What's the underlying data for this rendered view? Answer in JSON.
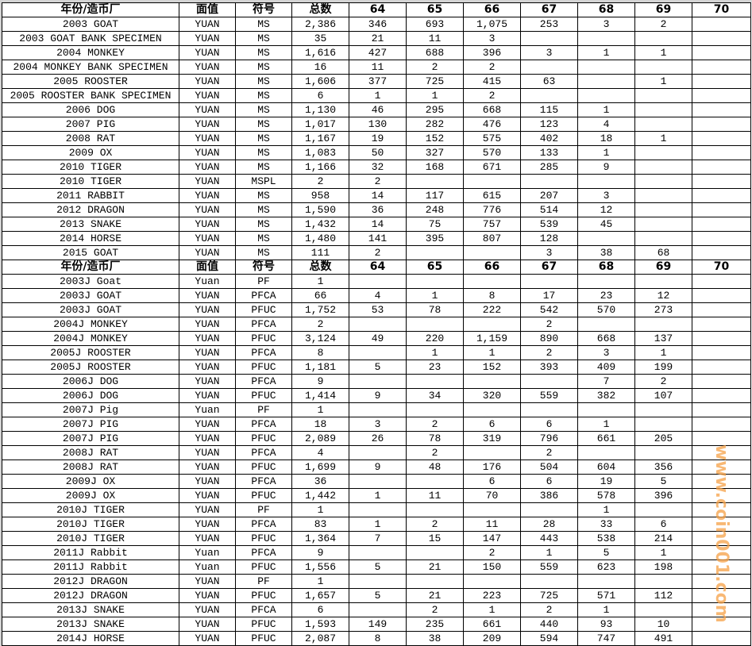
{
  "header": [
    "年份/造币厂",
    "面值",
    "符号",
    "总数",
    "64",
    "65",
    "66",
    "67",
    "68",
    "69",
    "70"
  ],
  "sections": [
    {
      "rows": [
        [
          "2003 GOAT",
          "YUAN",
          "MS",
          "2,386",
          "346",
          "693",
          "1,075",
          "253",
          "3",
          "2",
          ""
        ],
        [
          "2003 GOAT BANK SPECIMEN",
          "YUAN",
          "MS",
          "35",
          "21",
          "11",
          "3",
          "",
          "",
          "",
          ""
        ],
        [
          "2004 MONKEY",
          "YUAN",
          "MS",
          "1,616",
          "427",
          "688",
          "396",
          "3",
          "1",
          "1",
          ""
        ],
        [
          "2004 MONKEY BANK SPECIMEN",
          "YUAN",
          "MS",
          "16",
          "11",
          "2",
          "2",
          "",
          "",
          "",
          ""
        ],
        [
          "2005 ROOSTER",
          "YUAN",
          "MS",
          "1,606",
          "377",
          "725",
          "415",
          "63",
          "",
          "1",
          ""
        ],
        [
          "2005 ROOSTER BANK SPECIMEN",
          "YUAN",
          "MS",
          "6",
          "1",
          "1",
          "2",
          "",
          "",
          "",
          ""
        ],
        [
          "2006 DOG",
          "YUAN",
          "MS",
          "1,130",
          "46",
          "295",
          "668",
          "115",
          "1",
          "",
          ""
        ],
        [
          "2007 PIG",
          "YUAN",
          "MS",
          "1,017",
          "130",
          "282",
          "476",
          "123",
          "4",
          "",
          ""
        ],
        [
          "2008 RAT",
          "YUAN",
          "MS",
          "1,167",
          "19",
          "152",
          "575",
          "402",
          "18",
          "1",
          ""
        ],
        [
          "2009 OX",
          "YUAN",
          "MS",
          "1,083",
          "50",
          "327",
          "570",
          "133",
          "1",
          "",
          ""
        ],
        [
          "2010 TIGER",
          "YUAN",
          "MS",
          "1,166",
          "32",
          "168",
          "671",
          "285",
          "9",
          "",
          ""
        ],
        [
          "2010 TIGER",
          "YUAN",
          "MSPL",
          "2",
          "2",
          "",
          "",
          "",
          "",
          "",
          ""
        ],
        [
          "2011 RABBIT",
          "YUAN",
          "MS",
          "958",
          "14",
          "117",
          "615",
          "207",
          "3",
          "",
          ""
        ],
        [
          "2012 DRAGON",
          "YUAN",
          "MS",
          "1,590",
          "36",
          "248",
          "776",
          "514",
          "12",
          "",
          ""
        ],
        [
          "2013 SNAKE",
          "YUAN",
          "MS",
          "1,432",
          "14",
          "75",
          "757",
          "539",
          "45",
          "",
          ""
        ],
        [
          "2014 HORSE",
          "YUAN",
          "MS",
          "1,480",
          "141",
          "395",
          "807",
          "128",
          "",
          "",
          ""
        ],
        [
          "2015 GOAT",
          "YUAN",
          "MS",
          "111",
          "2",
          "",
          "",
          "3",
          "38",
          "68",
          ""
        ]
      ]
    },
    {
      "rows": [
        [
          "2003J Goat",
          "Yuan",
          "PF",
          "1",
          "",
          "",
          "",
          "",
          "",
          "",
          ""
        ],
        [
          "2003J GOAT",
          "YUAN",
          "PFCA",
          "66",
          "4",
          "1",
          "8",
          "17",
          "23",
          "12",
          ""
        ],
        [
          "2003J GOAT",
          "YUAN",
          "PFUC",
          "1,752",
          "53",
          "78",
          "222",
          "542",
          "570",
          "273",
          ""
        ],
        [
          "2004J MONKEY",
          "YUAN",
          "PFCA",
          "2",
          "",
          "",
          "",
          "2",
          "",
          "",
          ""
        ],
        [
          "2004J MONKEY",
          "YUAN",
          "PFUC",
          "3,124",
          "49",
          "220",
          "1,159",
          "890",
          "668",
          "137",
          ""
        ],
        [
          "2005J ROOSTER",
          "YUAN",
          "PFCA",
          "8",
          "",
          "1",
          "1",
          "2",
          "3",
          "1",
          ""
        ],
        [
          "2005J ROOSTER",
          "YUAN",
          "PFUC",
          "1,181",
          "5",
          "23",
          "152",
          "393",
          "409",
          "199",
          ""
        ],
        [
          "2006J DOG",
          "YUAN",
          "PFCA",
          "9",
          "",
          "",
          "",
          "",
          "7",
          "2",
          ""
        ],
        [
          "2006J DOG",
          "YUAN",
          "PFUC",
          "1,414",
          "9",
          "34",
          "320",
          "559",
          "382",
          "107",
          ""
        ],
        [
          "2007J Pig",
          "Yuan",
          "PF",
          "1",
          "",
          "",
          "",
          "",
          "",
          "",
          ""
        ],
        [
          "2007J PIG",
          "YUAN",
          "PFCA",
          "18",
          "3",
          "2",
          "6",
          "6",
          "1",
          "",
          ""
        ],
        [
          "2007J PIG",
          "YUAN",
          "PFUC",
          "2,089",
          "26",
          "78",
          "319",
          "796",
          "661",
          "205",
          ""
        ],
        [
          "2008J RAT",
          "YUAN",
          "PFCA",
          "4",
          "",
          "2",
          "",
          "2",
          "",
          "",
          ""
        ],
        [
          "2008J RAT",
          "YUAN",
          "PFUC",
          "1,699",
          "9",
          "48",
          "176",
          "504",
          "604",
          "356",
          ""
        ],
        [
          "2009J OX",
          "YUAN",
          "PFCA",
          "36",
          "",
          "",
          "6",
          "6",
          "19",
          "5",
          ""
        ],
        [
          "2009J OX",
          "YUAN",
          "PFUC",
          "1,442",
          "1",
          "11",
          "70",
          "386",
          "578",
          "396",
          ""
        ],
        [
          "2010J TIGER",
          "YUAN",
          "PF",
          "1",
          "",
          "",
          "",
          "",
          "1",
          "",
          ""
        ],
        [
          "2010J TIGER",
          "YUAN",
          "PFCA",
          "83",
          "1",
          "2",
          "11",
          "28",
          "33",
          "6",
          ""
        ],
        [
          "2010J TIGER",
          "YUAN",
          "PFUC",
          "1,364",
          "7",
          "15",
          "147",
          "443",
          "538",
          "214",
          ""
        ],
        [
          "2011J Rabbit",
          "Yuan",
          "PFCA",
          "9",
          "",
          "",
          "2",
          "1",
          "5",
          "1",
          ""
        ],
        [
          "2011J Rabbit",
          "Yuan",
          "PFUC",
          "1,556",
          "5",
          "21",
          "150",
          "559",
          "623",
          "198",
          ""
        ],
        [
          "2012J DRAGON",
          "YUAN",
          "PF",
          "1",
          "",
          "",
          "",
          "",
          "",
          "",
          ""
        ],
        [
          "2012J DRAGON",
          "YUAN",
          "PFUC",
          "1,657",
          "5",
          "21",
          "223",
          "725",
          "571",
          "112",
          ""
        ],
        [
          "2013J SNAKE",
          "YUAN",
          "PFCA",
          "6",
          "",
          "2",
          "1",
          "2",
          "1",
          "",
          ""
        ],
        [
          "2013J SNAKE",
          "YUAN",
          "PFUC",
          "1,593",
          "149",
          "235",
          "661",
          "440",
          "93",
          "10",
          ""
        ],
        [
          "2014J HORSE",
          "YUAN",
          "PFUC",
          "2,087",
          "8",
          "38",
          "209",
          "594",
          "747",
          "491",
          ""
        ]
      ]
    }
  ],
  "watermark": "www.coin001.com",
  "colors": {
    "watermark": "#f5a046",
    "border": "#000000"
  }
}
